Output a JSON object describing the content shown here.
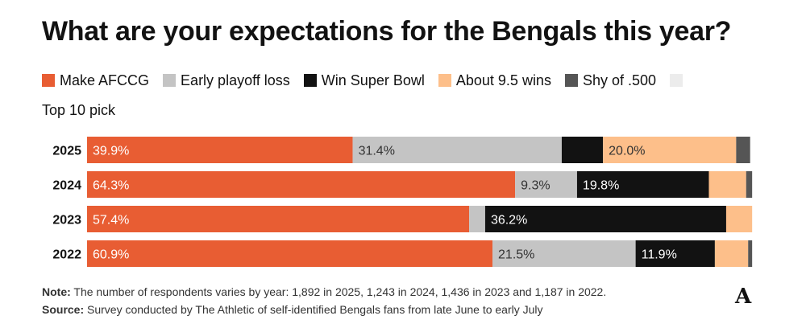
{
  "title": "What are your expectations for the Bengals this year?",
  "note_label": "Note:",
  "note_text": "The number of respondents varies by year: 1,892 in 2025, 1,243 in 2024, 1,436 in 2023 and 1,187 in 2022.",
  "source_label": "Source:",
  "source_text": "Survey conducted by The Athletic of self-identified Bengals fans from late June to early July",
  "logo": "A",
  "colors": {
    "make_afccg": "#e85d33",
    "early_playoff_loss": "#c4c4c4",
    "win_super_bowl": "#121212",
    "about_9_5_wins": "#fdbf8a",
    "shy_of_500": "#555555",
    "top_10_pick": "#ececec"
  },
  "chart_data": {
    "type": "bar",
    "orientation": "horizontal",
    "stacked": true,
    "categories": [
      "2025",
      "2024",
      "2023",
      "2022"
    ],
    "xlim": [
      0,
      100
    ],
    "legend_position": "top",
    "series": [
      {
        "name": "Make AFCCG",
        "color": "#e85d33",
        "label_color": "#ffffff",
        "values": [
          39.9,
          64.3,
          57.4,
          60.9
        ],
        "labels": [
          "39.9%",
          "64.3%",
          "57.4%",
          "60.9%"
        ]
      },
      {
        "name": "Early playoff loss",
        "color": "#c4c4c4",
        "label_color": "#333333",
        "values": [
          31.4,
          9.3,
          2.4,
          21.5
        ],
        "labels": [
          "31.4%",
          "9.3%",
          "",
          "21.5%"
        ]
      },
      {
        "name": "Win Super Bowl",
        "color": "#121212",
        "label_color": "#ffffff",
        "values": [
          6.2,
          19.8,
          36.2,
          11.9
        ],
        "labels": [
          "",
          "19.8%",
          "36.2%",
          "11.9%"
        ]
      },
      {
        "name": "About 9.5 wins",
        "color": "#fdbf8a",
        "label_color": "#333333",
        "values": [
          20.0,
          5.6,
          3.9,
          5.0
        ],
        "labels": [
          "20.0%",
          "",
          "",
          ""
        ]
      },
      {
        "name": "Shy of .500",
        "color": "#555555",
        "label_color": "#ffffff",
        "values": [
          2.1,
          0.9,
          0,
          0.6
        ],
        "labels": [
          "",
          "",
          "",
          ""
        ]
      },
      {
        "name": "Top 10 pick",
        "color": "#ececec",
        "label_color": "#333333",
        "values": [
          0,
          0,
          0,
          0
        ],
        "labels": [
          "",
          "",
          "",
          ""
        ]
      }
    ]
  }
}
